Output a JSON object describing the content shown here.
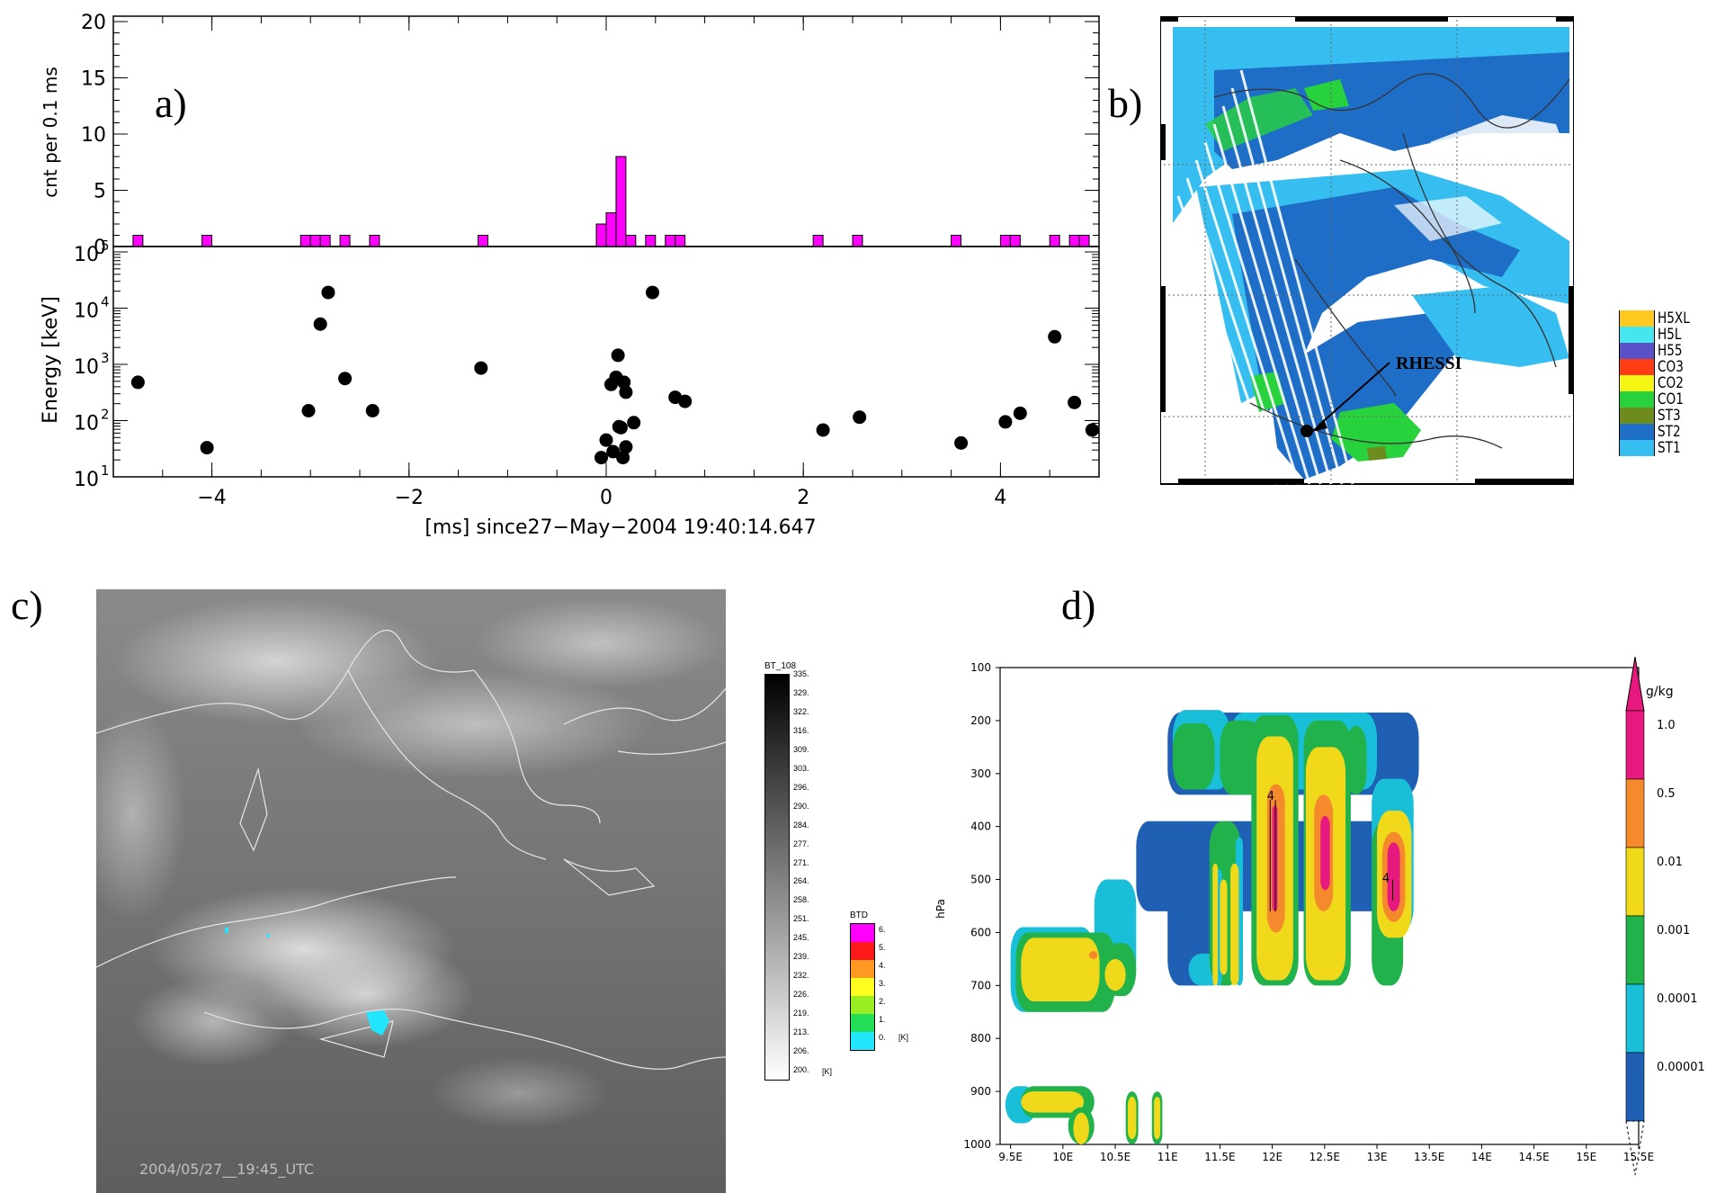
{
  "panels": {
    "a": "a)",
    "b": "b)",
    "c": "c)",
    "d": "d)"
  },
  "chart_data": [
    {
      "type": "bar",
      "panel": "a-top",
      "ylabel": "cnt per 0.1 ms",
      "ylim": [
        0,
        20
      ],
      "yticks": [
        "0",
        "5",
        "10",
        "15",
        "20"
      ],
      "color": "#ff00ff",
      "bins": [
        {
          "x": -4.75,
          "count": 1
        },
        {
          "x": -4.05,
          "count": 1
        },
        {
          "x": -3.05,
          "count": 1
        },
        {
          "x": -2.95,
          "count": 1
        },
        {
          "x": -2.85,
          "count": 1
        },
        {
          "x": -2.65,
          "count": 1
        },
        {
          "x": -2.35,
          "count": 1
        },
        {
          "x": -1.25,
          "count": 1
        },
        {
          "x": -0.05,
          "count": 2
        },
        {
          "x": 0.05,
          "count": 3
        },
        {
          "x": 0.15,
          "count": 8
        },
        {
          "x": 0.25,
          "count": 1
        },
        {
          "x": 0.45,
          "count": 1
        },
        {
          "x": 0.65,
          "count": 1
        },
        {
          "x": 0.75,
          "count": 1
        },
        {
          "x": 2.15,
          "count": 1
        },
        {
          "x": 2.55,
          "count": 1
        },
        {
          "x": 3.55,
          "count": 1
        },
        {
          "x": 4.05,
          "count": 1
        },
        {
          "x": 4.15,
          "count": 1
        },
        {
          "x": 4.55,
          "count": 1
        },
        {
          "x": 4.75,
          "count": 1
        },
        {
          "x": 4.85,
          "count": 1
        }
      ]
    },
    {
      "type": "scatter",
      "panel": "a-bottom",
      "ylabel": "Energy [keV]",
      "xlabel": "[ms] since27−May−2004 19:40:14.647",
      "xlim": [
        -5,
        5
      ],
      "xticks": [
        "−4",
        "−2",
        "0",
        "2",
        "4"
      ],
      "ylim": [
        10,
        100000
      ],
      "yscale": "log",
      "ytick_base": "10",
      "ytick_exps": [
        "1",
        "2",
        "3",
        "4",
        "5"
      ],
      "points": [
        {
          "x": -4.75,
          "y": 480
        },
        {
          "x": -4.05,
          "y": 33
        },
        {
          "x": -3.02,
          "y": 150
        },
        {
          "x": -2.9,
          "y": 5200
        },
        {
          "x": -2.82,
          "y": 19000
        },
        {
          "x": -2.65,
          "y": 560
        },
        {
          "x": -2.37,
          "y": 150
        },
        {
          "x": -1.27,
          "y": 860
        },
        {
          "x": -0.05,
          "y": 22
        },
        {
          "x": 0.0,
          "y": 45
        },
        {
          "x": 0.05,
          "y": 440
        },
        {
          "x": 0.07,
          "y": 28
        },
        {
          "x": 0.1,
          "y": 590
        },
        {
          "x": 0.12,
          "y": 1450
        },
        {
          "x": 0.13,
          "y": 78
        },
        {
          "x": 0.15,
          "y": 75
        },
        {
          "x": 0.17,
          "y": 22
        },
        {
          "x": 0.18,
          "y": 480
        },
        {
          "x": 0.2,
          "y": 34
        },
        {
          "x": 0.2,
          "y": 320
        },
        {
          "x": 0.28,
          "y": 92
        },
        {
          "x": 0.47,
          "y": 19000
        },
        {
          "x": 0.7,
          "y": 260
        },
        {
          "x": 0.8,
          "y": 220
        },
        {
          "x": 2.2,
          "y": 68
        },
        {
          "x": 2.57,
          "y": 115
        },
        {
          "x": 3.6,
          "y": 40
        },
        {
          "x": 4.05,
          "y": 95
        },
        {
          "x": 4.2,
          "y": 135
        },
        {
          "x": 4.55,
          "y": 3100
        },
        {
          "x": 4.75,
          "y": 210
        },
        {
          "x": 4.93,
          "y": 68
        }
      ]
    },
    {
      "type": "heatmap",
      "panel": "d",
      "ylabel": "hPa",
      "yticks": [
        "100",
        "200",
        "300",
        "400",
        "500",
        "600",
        "700",
        "800",
        "900",
        "1000"
      ],
      "xticks": [
        "9.5E",
        "10E",
        "10.5E",
        "11E",
        "11.5E",
        "12E",
        "12.5E",
        "13E",
        "13.5E",
        "14E",
        "14.5E",
        "15E",
        "15.5E"
      ],
      "colorbar_unit": "g/kg",
      "colorbar_labels": [
        "1.0",
        "0.5",
        "0.01",
        "0.001",
        "0.0001",
        "0.00001"
      ],
      "contour_labels": [
        "4",
        "4"
      ],
      "levels": [
        {
          "color": "#1f5fb4"
        },
        {
          "color": "#19bfd8"
        },
        {
          "color": "#22b24c"
        },
        {
          "color": "#efd91a"
        },
        {
          "color": "#f58a2c"
        },
        {
          "color": "#e8197e"
        }
      ]
    }
  ],
  "map_b": {
    "label": "RHESSI",
    "legend": [
      "H5XL",
      "H5L",
      "H55",
      "CO3",
      "CO2",
      "CO1",
      "ST3",
      "ST2",
      "ST1"
    ],
    "legend_colors": [
      "#ffc81e",
      "#46e6f0",
      "#5a50c8",
      "#ff3c14",
      "#f5f514",
      "#28d23c",
      "#6e8c1e",
      "#1e6ec8",
      "#37bef0"
    ]
  },
  "map_c": {
    "timestamp": "2004/05/27__19:45_UTC",
    "bt_title": "BT_108",
    "bt_ticks": [
      "335.",
      "329.",
      "322.",
      "316.",
      "309.",
      "303.",
      "296.",
      "290.",
      "284.",
      "277.",
      "271.",
      "264.",
      "258.",
      "251.",
      "245.",
      "239.",
      "232.",
      "226.",
      "219.",
      "213.",
      "206.",
      "200."
    ],
    "bt_unit": "[K]",
    "btd_title": "BTD",
    "btd_ticks": [
      "6.",
      "5.",
      "4.",
      "3.",
      "2.",
      "1.",
      "0."
    ],
    "btd_unit": "[K]",
    "btd_colors": [
      "#ff00ff",
      "#ff1a1a",
      "#ff9922",
      "#ffff22",
      "#99ee22",
      "#22dd55",
      "#22e6ff"
    ]
  }
}
